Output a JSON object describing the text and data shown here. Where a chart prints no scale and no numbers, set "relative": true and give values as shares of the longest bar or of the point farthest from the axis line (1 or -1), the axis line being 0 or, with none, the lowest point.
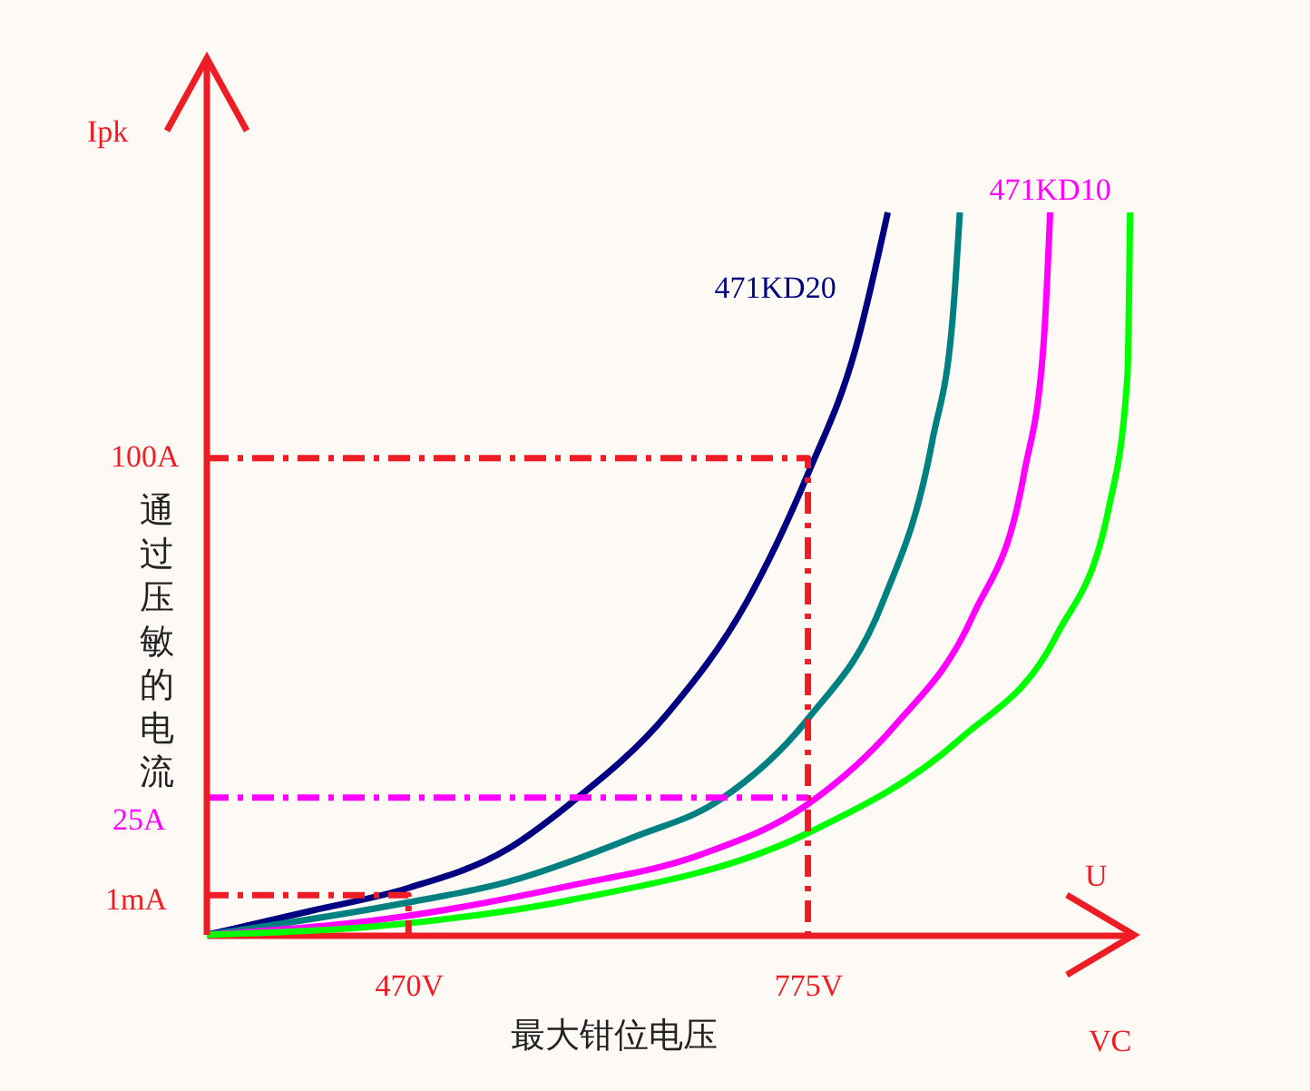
{
  "chart_data": {
    "type": "line",
    "relative": true,
    "xlabel": "最大钳位电压",
    "ylabel": "通过压敏的电流",
    "xlim": [
      316,
      1024
    ],
    "xticks": [
      {
        "value": 470,
        "label": "470V"
      },
      {
        "value": 775,
        "label": "775V"
      }
    ],
    "grid": false,
    "marker": "none",
    "line_style": "solid",
    "series": [
      {
        "name": "471KD20",
        "color": "#000080",
        "x": [
          316,
          395,
          470,
          545,
          593,
          668,
          728,
          775,
          811,
          836
        ],
        "values": [
          0,
          0.033,
          0.065,
          0.118,
          0.181,
          0.307,
          0.46,
          0.638,
          0.809,
          1
        ]
      },
      {
        "color": "#008080",
        "x": [
          316,
          464,
          545,
          643,
          707,
          775,
          832,
          870,
          886,
          891
        ],
        "values": [
          0,
          0.043,
          0.073,
          0.136,
          0.186,
          0.299,
          0.46,
          0.684,
          0.864,
          1
        ]
      },
      {
        "name": "471KD10",
        "color": "#ff00ff",
        "x": [
          316,
          464,
          593,
          693,
          775,
          841,
          901,
          940,
          955,
          960
        ],
        "values": [
          0,
          0.025,
          0.068,
          0.111,
          0.181,
          0.289,
          0.442,
          0.638,
          0.819,
          1
        ]
      },
      {
        "color": "#00ff00",
        "x": [
          316,
          464,
          593,
          775,
          891,
          965,
          1005,
          1019,
          1021
        ],
        "values": [
          0,
          0.015,
          0.048,
          0.141,
          0.271,
          0.415,
          0.593,
          0.774,
          1
        ]
      },
      {
        "color": "#ee1c25",
        "line_style": "dashed",
        "x": [
          316,
          775,
          775
        ],
        "values": [
          0.66,
          0.66,
          0
        ]
      },
      {
        "color": "#ff00ff",
        "line_style": "dashed",
        "x": [
          316,
          775
        ],
        "values": [
          0.19,
          0.19
        ]
      },
      {
        "color": "#ee1c25",
        "line_style": "dashed",
        "x": [
          316,
          470,
          470
        ],
        "values": [
          0.055,
          0.055,
          0
        ]
      }
    ],
    "annotations": [
      "100A",
      "25A",
      "1mA",
      "Ipk",
      "U",
      "VC"
    ]
  }
}
